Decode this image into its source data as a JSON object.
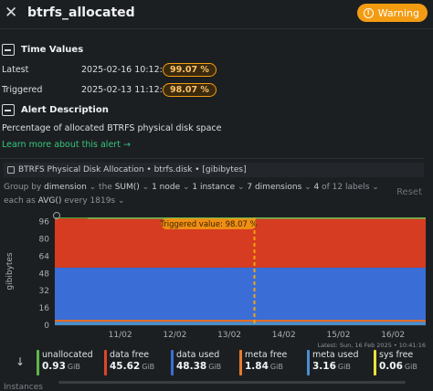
{
  "header": {
    "close_glyph": "✕",
    "title": "btrfs_allocated",
    "status": "Warning"
  },
  "time_values": {
    "heading": "Time Values",
    "rows": [
      {
        "label": "Latest",
        "date": "2025-02-16 10:12:05",
        "value": "99.07 %"
      },
      {
        "label": "Triggered",
        "date": "2025-02-13 11:12:33",
        "value": "98.07 %"
      }
    ]
  },
  "alert_description": {
    "heading": "Alert Description",
    "text": "Percentage of allocated BTRFS physical disk space",
    "learn_more": "Learn more about this alert →"
  },
  "chart_header": {
    "title": "BTRFS Physical Disk Allocation • btrfs.disk • [gibibytes]"
  },
  "controls": {
    "line1": [
      {
        "text": "Group by ",
        "strong": false
      },
      {
        "text": "dimension",
        "strong": true
      },
      {
        "text": " ⌄  the ",
        "strong": false
      },
      {
        "text": "SUM()",
        "strong": true
      },
      {
        "text": " ⌄  ",
        "strong": false
      },
      {
        "text": "1 node",
        "strong": true
      },
      {
        "text": " ⌄  ",
        "strong": false
      },
      {
        "text": "1 instance",
        "strong": true
      },
      {
        "text": " ⌄  ",
        "strong": false
      },
      {
        "text": "7 dimensions",
        "strong": true
      },
      {
        "text": " ⌄  ",
        "strong": false
      },
      {
        "text": "4",
        "strong": true
      },
      {
        "text": " of 12 labels ⌄",
        "strong": false
      }
    ],
    "line2": [
      {
        "text": "each as ",
        "strong": false
      },
      {
        "text": "AVG()",
        "strong": true
      },
      {
        "text": " every 1819s ⌄",
        "strong": false
      }
    ],
    "reset": "Reset"
  },
  "chart_data": {
    "type": "area",
    "stacked": true,
    "ylabel": "gibibytes",
    "yticks": [
      0,
      16,
      32,
      48,
      64,
      80,
      96
    ],
    "ylim": [
      0,
      100
    ],
    "xticks": [
      "11/02",
      "12/02",
      "13/02",
      "14/02",
      "15/02",
      "16/02"
    ],
    "x_days": [
      9.8,
      16.6
    ],
    "trigger": {
      "x_day": 13.46,
      "label": "Triggered value: 98.07 %"
    },
    "timestamp": "Latest: Sun, 16 Feb 2025 • 10:41:16",
    "series": [
      {
        "name": "sys free",
        "color": "#e8e33a",
        "values": [
          0.06,
          0.06
        ]
      },
      {
        "name": "meta used",
        "color": "#4a8fd1",
        "values": [
          3.16,
          3.16
        ]
      },
      {
        "name": "meta free",
        "color": "#e8702a",
        "values": [
          1.84,
          1.84
        ]
      },
      {
        "name": "data used",
        "color": "#3a6ed6",
        "values": [
          48.38,
          48.38
        ]
      },
      {
        "name": "data free",
        "color": "#d63c22",
        "values": [
          45.62,
          45.62
        ]
      },
      {
        "name": "unallocated",
        "color": "#4fa83a",
        "values": [
          0.93,
          0.93
        ]
      }
    ],
    "legend": [
      {
        "name": "unallocated",
        "value": "0.93",
        "unit": "GiB",
        "color": "#5fb84a"
      },
      {
        "name": "data free",
        "value": "45.62",
        "unit": "GiB",
        "color": "#e0452a"
      },
      {
        "name": "data used",
        "value": "48.38",
        "unit": "GiB",
        "color": "#3a6ed6"
      },
      {
        "name": "meta free",
        "value": "1.84",
        "unit": "GiB",
        "color": "#ea7b2c"
      },
      {
        "name": "meta used",
        "value": "3.16",
        "unit": "GiB",
        "color": "#4a8fd1"
      },
      {
        "name": "sys free",
        "value": "0.06",
        "unit": "GiB",
        "color": "#e8e33a"
      }
    ]
  },
  "footer_hint": "Instances"
}
